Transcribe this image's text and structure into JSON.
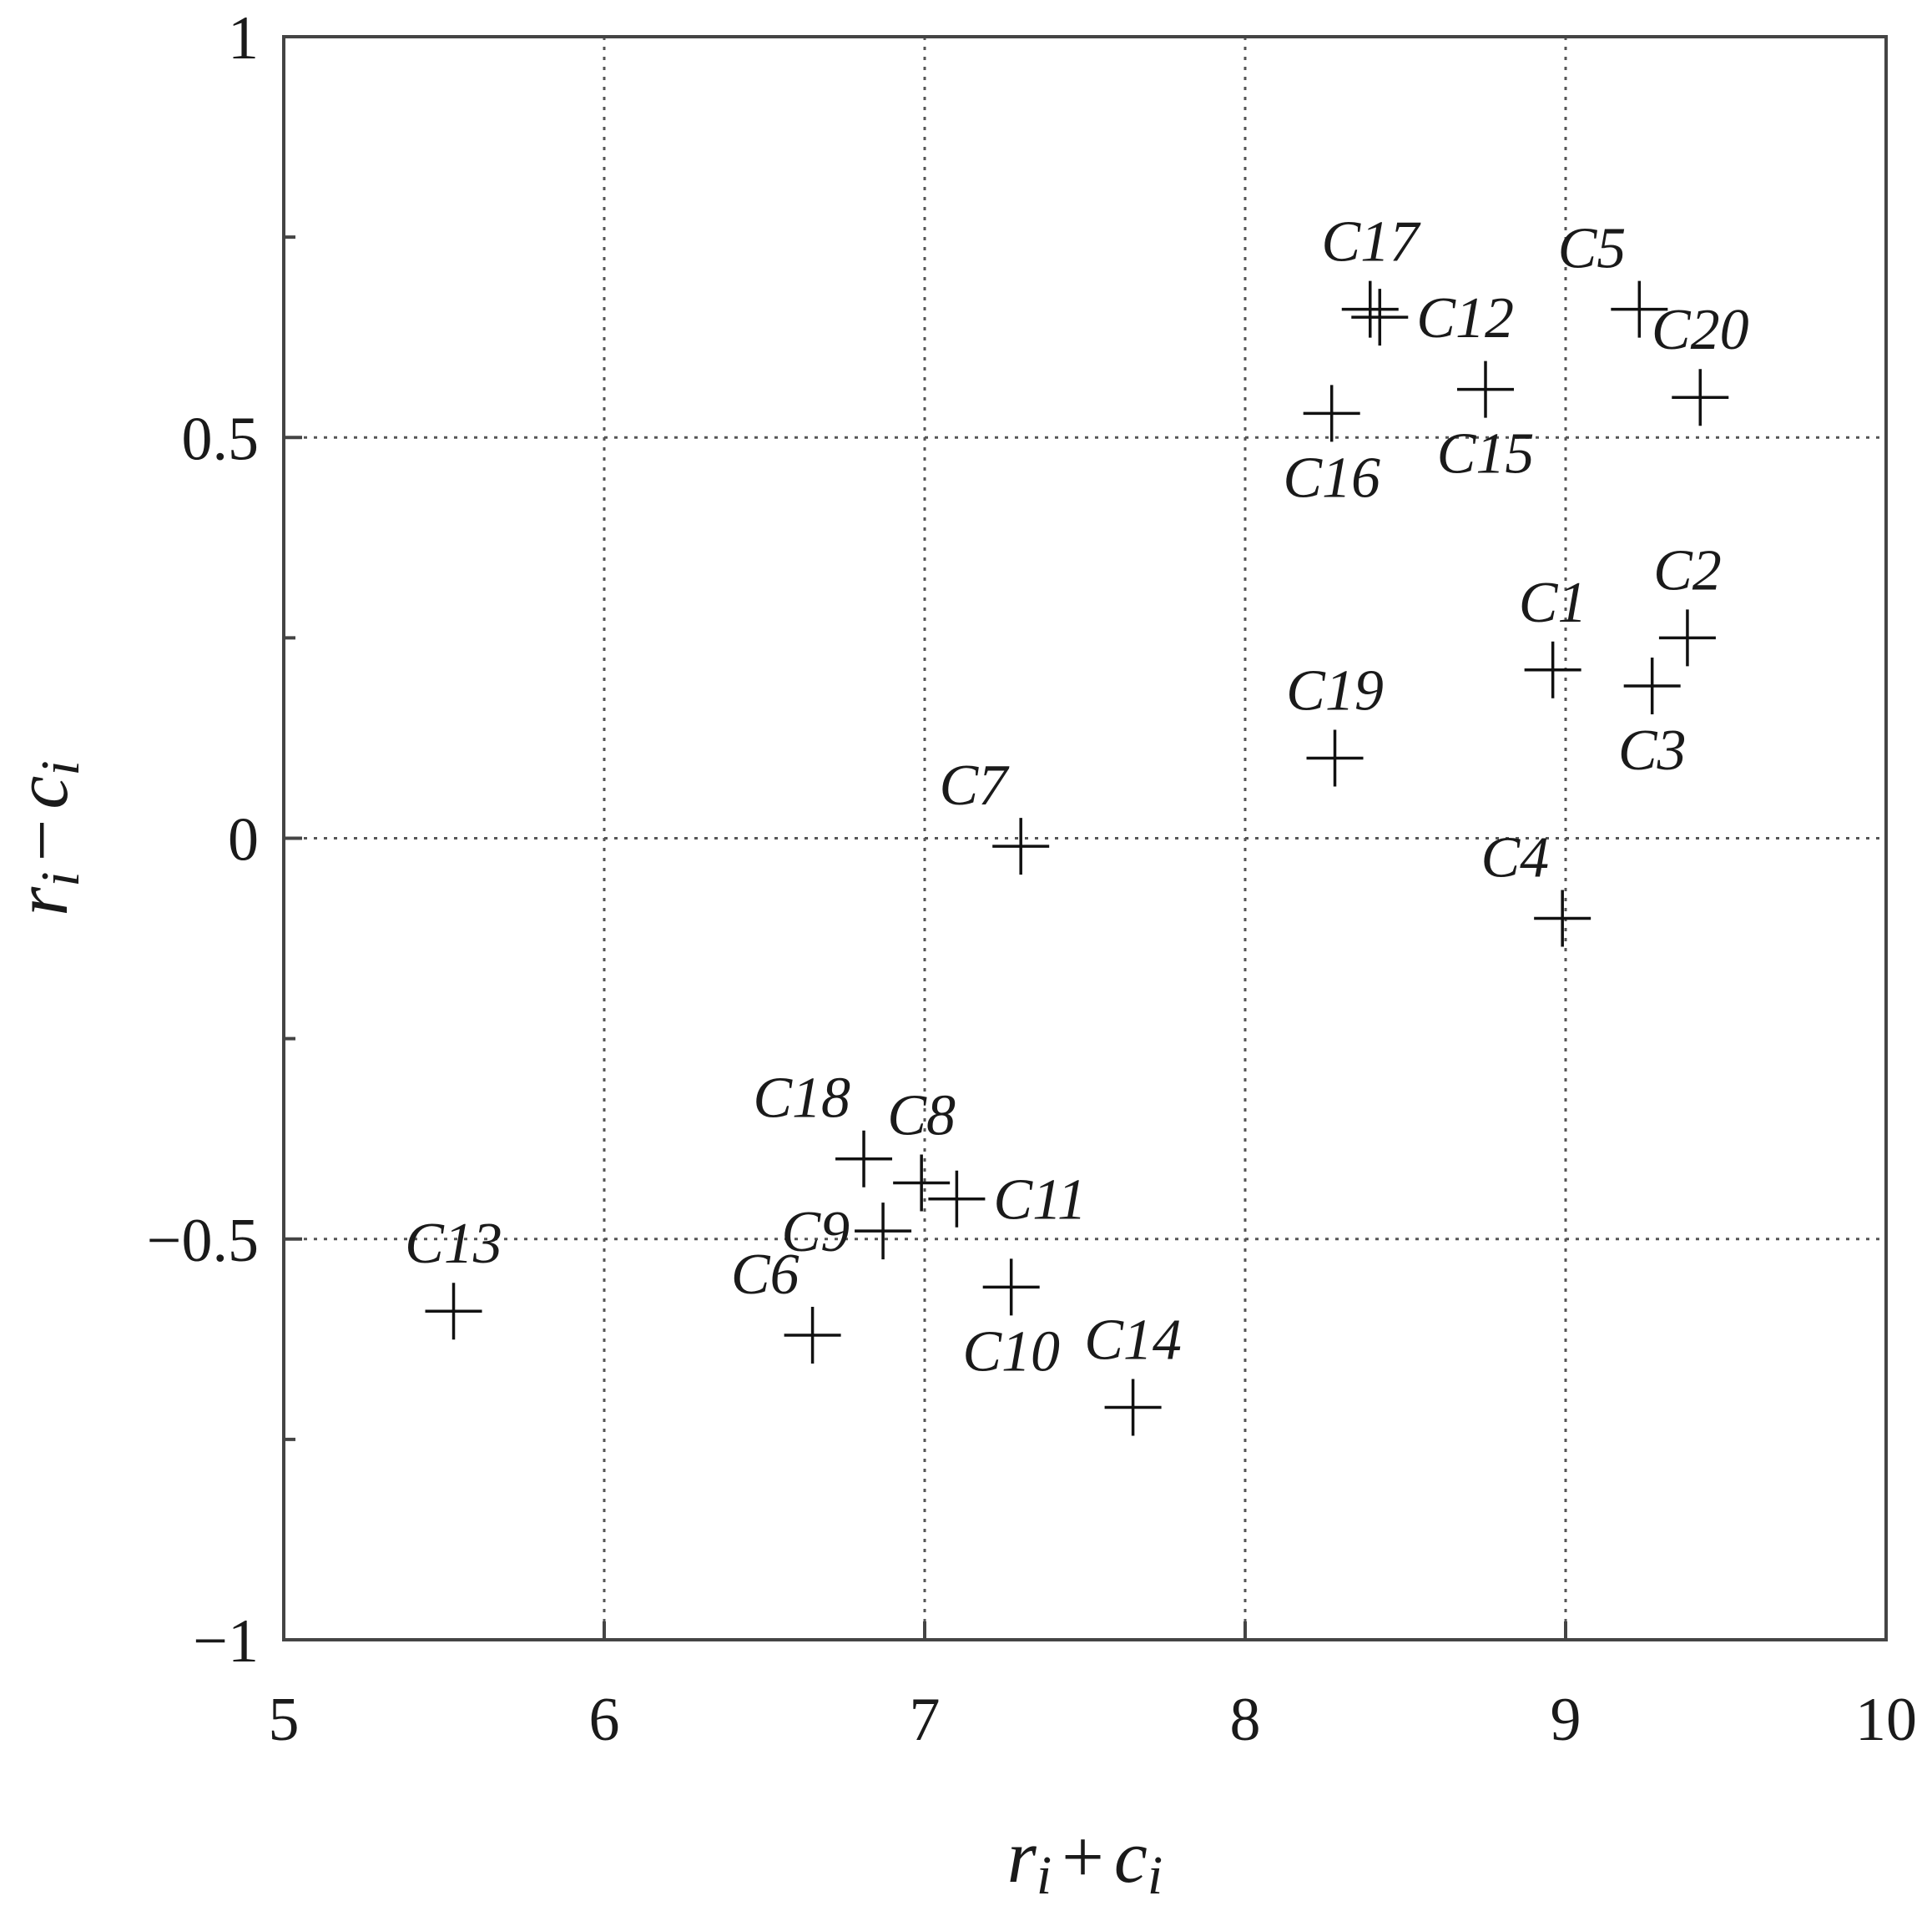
{
  "chart_data": {
    "type": "scatter",
    "title": "",
    "xlabel": "r_i + c_i",
    "ylabel": "r_i − c_i",
    "xlabel_parts": {
      "r": "r",
      "sub1": "i",
      "op": "+",
      "c": "c",
      "sub2": "i"
    },
    "ylabel_parts": {
      "r": "r",
      "sub1": "i",
      "op": "−",
      "c": "c",
      "sub2": "i"
    },
    "xlim": [
      5,
      10
    ],
    "ylim": [
      -1,
      1
    ],
    "grid": true,
    "marker": "plus",
    "x_ticks": [
      5,
      6,
      7,
      8,
      9,
      10
    ],
    "x_tick_labels": [
      "5",
      "6",
      "7",
      "8",
      "9",
      "10"
    ],
    "y_ticks": [
      -1,
      -0.5,
      0,
      0.5,
      1
    ],
    "y_tick_labels": [
      "−1",
      "−0.5",
      "0",
      "0.5",
      "1"
    ],
    "y_minor_ticks": [
      -0.75,
      -0.25,
      0.25,
      0.75
    ],
    "points": [
      {
        "label": "C1",
        "x": 8.96,
        "y": 0.21,
        "label_pos": "above"
      },
      {
        "label": "C2",
        "x": 9.38,
        "y": 0.25,
        "label_pos": "above"
      },
      {
        "label": "C3",
        "x": 9.27,
        "y": 0.19,
        "label_pos": "below"
      },
      {
        "label": "C4",
        "x": 8.99,
        "y": -0.1,
        "label_pos": "above-left"
      },
      {
        "label": "C5",
        "x": 9.23,
        "y": 0.66,
        "label_pos": "above-left"
      },
      {
        "label": "C6",
        "x": 6.65,
        "y": -0.62,
        "label_pos": "above-left"
      },
      {
        "label": "C7",
        "x": 7.3,
        "y": -0.01,
        "label_pos": "above-left"
      },
      {
        "label": "C8",
        "x": 6.99,
        "y": -0.43,
        "label_pos": "above"
      },
      {
        "label": "C9",
        "x": 6.87,
        "y": -0.49,
        "label_pos": "left"
      },
      {
        "label": "C10",
        "x": 7.27,
        "y": -0.56,
        "label_pos": "below"
      },
      {
        "label": "C11",
        "x": 7.1,
        "y": -0.45,
        "label_pos": "right"
      },
      {
        "label": "C12",
        "x": 8.42,
        "y": 0.65,
        "label_pos": "right"
      },
      {
        "label": "C13",
        "x": 5.53,
        "y": -0.59,
        "label_pos": "above"
      },
      {
        "label": "C14",
        "x": 7.65,
        "y": -0.71,
        "label_pos": "above"
      },
      {
        "label": "C15",
        "x": 8.75,
        "y": 0.56,
        "label_pos": "below"
      },
      {
        "label": "C16",
        "x": 8.27,
        "y": 0.53,
        "label_pos": "below"
      },
      {
        "label": "C17",
        "x": 8.39,
        "y": 0.66,
        "label_pos": "above"
      },
      {
        "label": "C18",
        "x": 6.81,
        "y": -0.4,
        "label_pos": "above-left"
      },
      {
        "label": "C19",
        "x": 8.28,
        "y": 0.1,
        "label_pos": "above"
      },
      {
        "label": "C20",
        "x": 9.42,
        "y": 0.55,
        "label_pos": "above"
      }
    ]
  }
}
